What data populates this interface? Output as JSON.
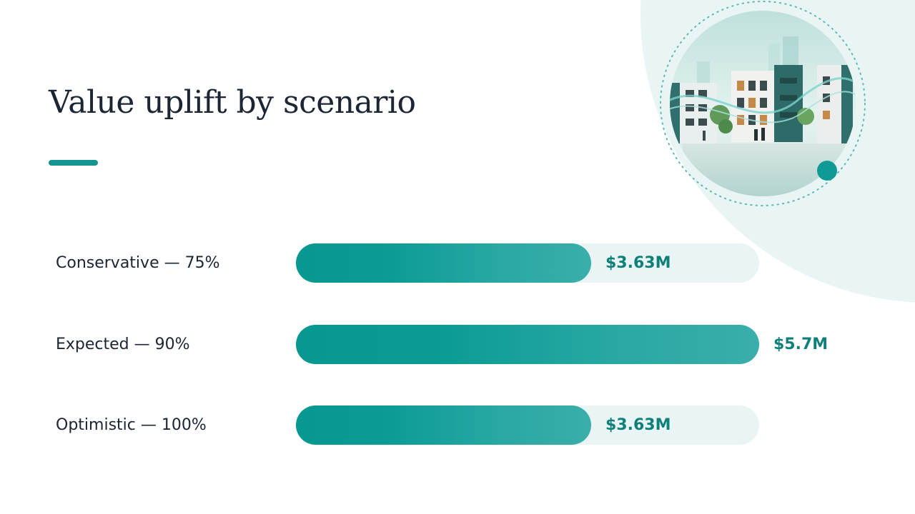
{
  "slide": {
    "title": "Value uplift by scenario"
  },
  "colors": {
    "accent": "#14958F",
    "bar_fill": "#0A9B94",
    "bar_track": "#E8F5F4",
    "value_text": "#0F7F7A",
    "title_text": "#1B2533"
  },
  "chart_data": {
    "type": "bar",
    "orientation": "horizontal",
    "categories": [
      "Conservative — 75%",
      "Expected — 90%",
      "Optimistic — 100%"
    ],
    "values": [
      3.63,
      5.7,
      3.63
    ],
    "value_labels": [
      "$3.63M",
      "$5.7M",
      "$3.63M"
    ],
    "xlim": [
      0,
      5.7
    ],
    "grid": false,
    "unit": "$M"
  }
}
